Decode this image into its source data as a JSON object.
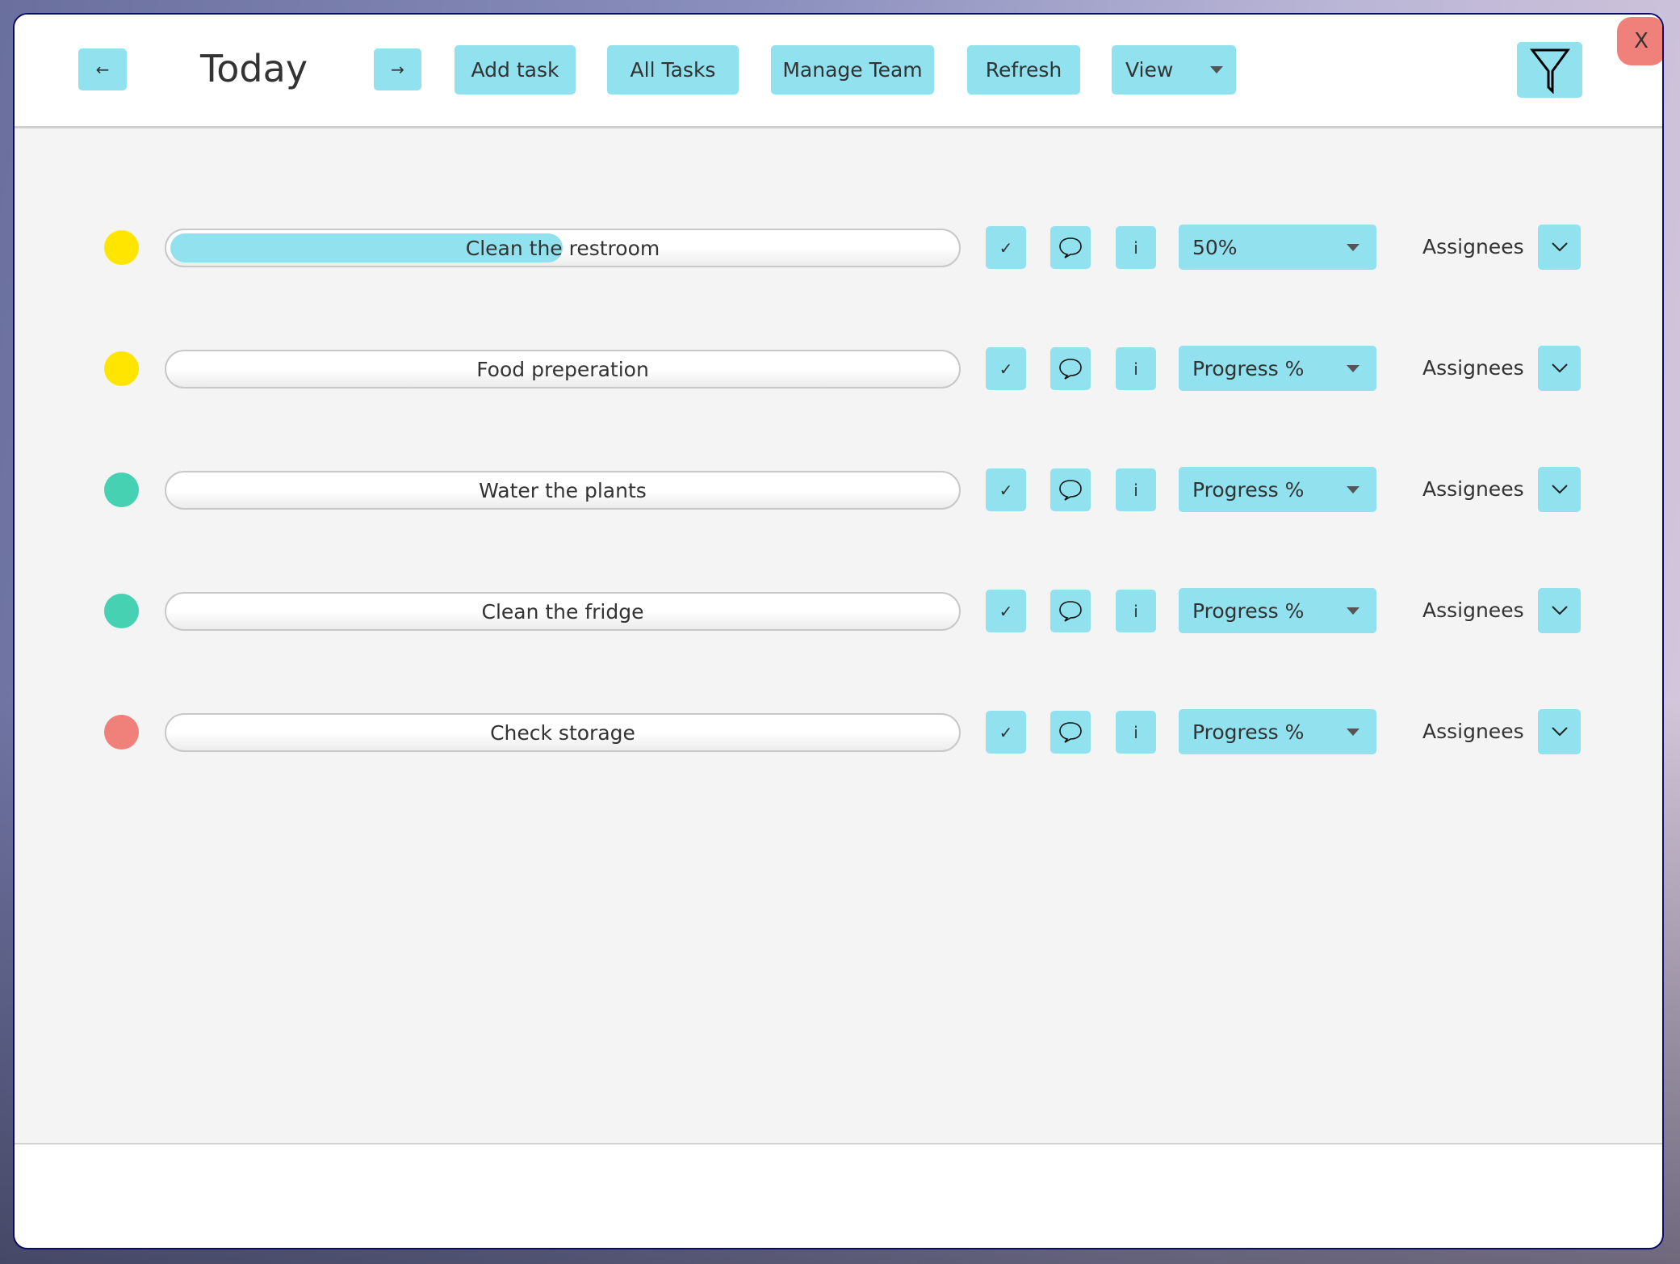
{
  "header": {
    "prev_icon": "←",
    "title": "Today",
    "next_icon": "→",
    "buttons": [
      "Add task",
      "All Tasks",
      "Manage Team",
      "Refresh"
    ],
    "view_label": "View",
    "filter_icon": "funnel-icon",
    "close_label": "X"
  },
  "colors": {
    "accent": "#91E1EF",
    "yellow": "#FFE500",
    "teal": "#45D1B2",
    "red": "#F0807A"
  },
  "tasks": [
    {
      "name": "Clean the restroom",
      "status_color": "#FFE500",
      "progress_label": "50%",
      "progress": 50,
      "assignees_label": "Assignees"
    },
    {
      "name": "Food preperation",
      "status_color": "#FFE500",
      "progress_label": "Progress %",
      "progress": 0,
      "assignees_label": "Assignees"
    },
    {
      "name": "Water the plants",
      "status_color": "#45D1B2",
      "progress_label": "Progress %",
      "progress": 0,
      "assignees_label": "Assignees"
    },
    {
      "name": "Clean the fridge",
      "status_color": "#45D1B2",
      "progress_label": "Progress %",
      "progress": 0,
      "assignees_label": "Assignees"
    },
    {
      "name": "Check storage",
      "status_color": "#F0807A",
      "progress_label": "Progress %",
      "progress": 0,
      "assignees_label": "Assignees"
    }
  ],
  "row_icons": {
    "check": "✓",
    "info": "i"
  }
}
